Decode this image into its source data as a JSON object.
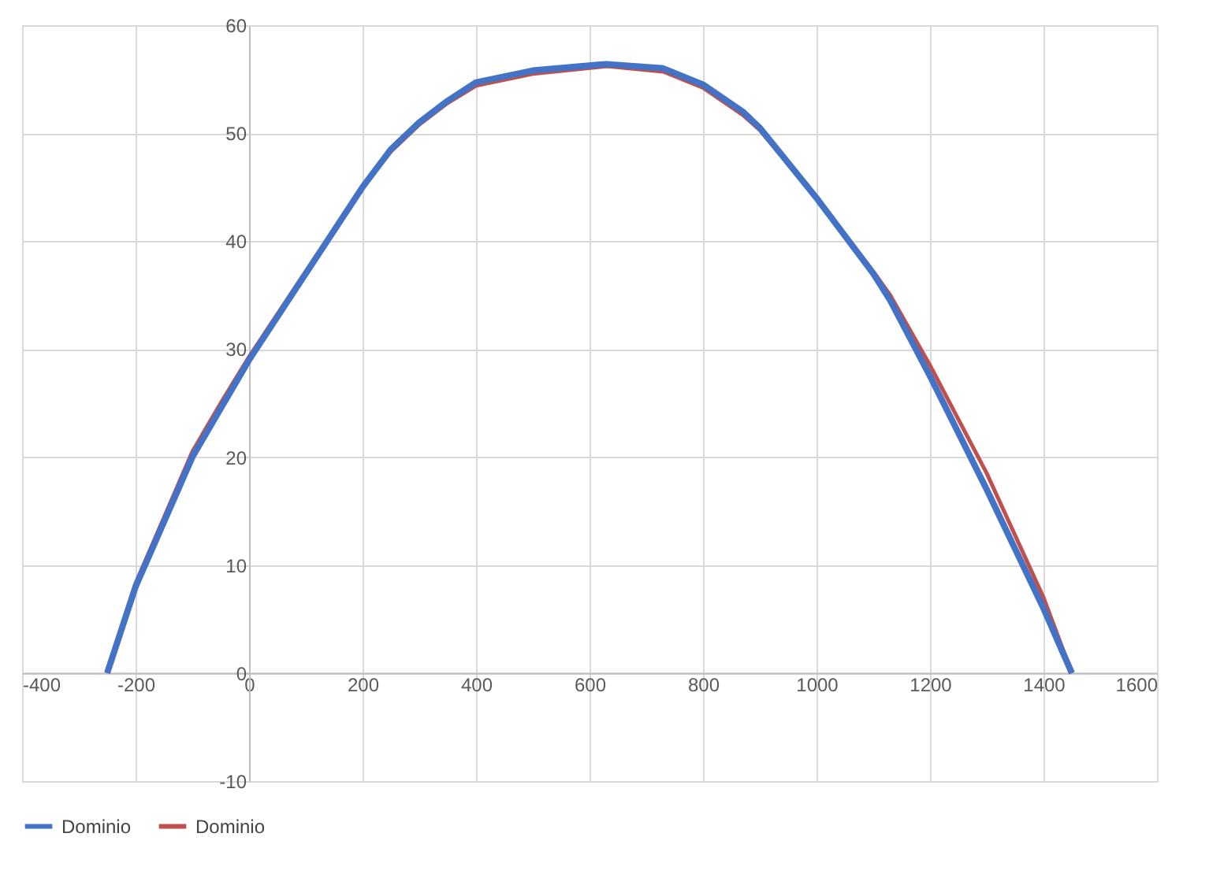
{
  "chart_data": {
    "type": "line",
    "xlim": [
      -400,
      1600
    ],
    "xticks": [
      -400,
      -200,
      0,
      200,
      400,
      600,
      800,
      1000,
      1200,
      1400,
      1600
    ],
    "ylim": [
      -10,
      60
    ],
    "yticks": [
      -10,
      0,
      10,
      20,
      30,
      40,
      50,
      60
    ],
    "grid": true,
    "legend": "bottom",
    "marker": "none",
    "line_style": "solid",
    "series": [
      {
        "name": "Dominio",
        "color": "#4472c4",
        "x": [
          -250,
          -200,
          -100,
          -50,
          0,
          100,
          200,
          250,
          300,
          350,
          400,
          500,
          630,
          730,
          800,
          870,
          900,
          1000,
          1100,
          1130,
          1200,
          1300,
          1400,
          1450
        ],
        "values": [
          0,
          8,
          20,
          24.5,
          29,
          37,
          45,
          48.5,
          51,
          53,
          54.7,
          55.8,
          56.4,
          56,
          54.5,
          52,
          50.5,
          44,
          37,
          34.5,
          27.5,
          17,
          6,
          0
        ]
      },
      {
        "name": "Dominio",
        "color": "#c0504d",
        "x": [
          -250,
          -200,
          -100,
          -50,
          0,
          100,
          200,
          250,
          300,
          350,
          400,
          500,
          630,
          730,
          800,
          870,
          900,
          1000,
          1100,
          1130,
          1200,
          1300,
          1400,
          1450
        ],
        "values": [
          0,
          8.3,
          20.5,
          25,
          29.3,
          37.2,
          45,
          48.3,
          50.8,
          52.8,
          54.4,
          55.5,
          56.2,
          55.7,
          54.2,
          51.7,
          50.3,
          44,
          37.2,
          35,
          28.5,
          18.5,
          7,
          0
        ]
      }
    ]
  }
}
